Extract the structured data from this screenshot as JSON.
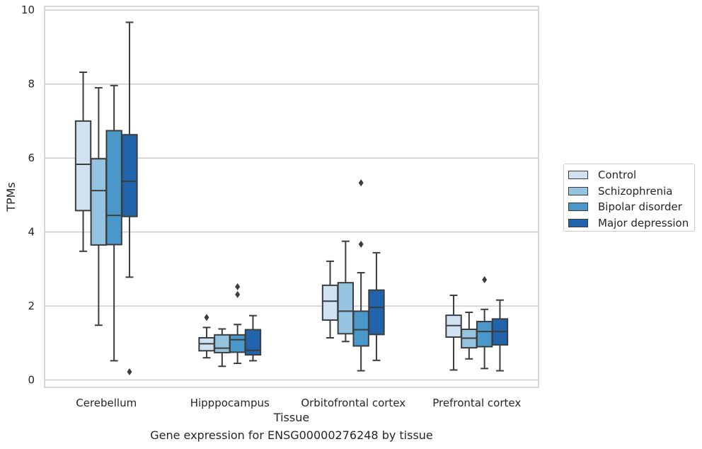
{
  "chart_data": {
    "type": "box",
    "title": "",
    "caption": "Gene expression for ENSG00000276248 by tissue",
    "xlabel": "Tissue",
    "ylabel": "TPMs",
    "ylim": [
      -0.2,
      10.1
    ],
    "yticks": [
      0,
      2,
      4,
      6,
      8,
      10
    ],
    "grid": "horizontal",
    "legend_position": "right",
    "categories": [
      "Cerebellum",
      "Hipppocampus",
      "Orbitofrontal cortex",
      "Prefrontal cortex"
    ],
    "series": [
      {
        "name": "Control",
        "color": "#d0e1f2",
        "boxes": [
          {
            "whislo": 3.48,
            "q1": 4.58,
            "med": 5.83,
            "q3": 7.0,
            "whishi": 8.32,
            "fliers": []
          },
          {
            "whislo": 0.6,
            "q1": 0.79,
            "med": 0.98,
            "q3": 1.14,
            "whishi": 1.42,
            "fliers": [
              1.69
            ]
          },
          {
            "whislo": 1.14,
            "q1": 1.62,
            "med": 2.13,
            "q3": 2.56,
            "whishi": 3.21,
            "fliers": []
          },
          {
            "whislo": 0.27,
            "q1": 1.16,
            "med": 1.47,
            "q3": 1.75,
            "whishi": 2.29,
            "fliers": []
          }
        ]
      },
      {
        "name": "Schizophrenia",
        "color": "#94c4df",
        "boxes": [
          {
            "whislo": 1.48,
            "q1": 3.65,
            "med": 5.12,
            "q3": 5.98,
            "whishi": 7.9,
            "fliers": []
          },
          {
            "whislo": 0.37,
            "q1": 0.74,
            "med": 0.86,
            "q3": 1.22,
            "whishi": 1.38,
            "fliers": []
          },
          {
            "whislo": 1.04,
            "q1": 1.25,
            "med": 1.86,
            "q3": 2.63,
            "whishi": 3.75,
            "fliers": []
          },
          {
            "whislo": 0.57,
            "q1": 0.87,
            "med": 1.13,
            "q3": 1.37,
            "whishi": 1.83,
            "fliers": []
          }
        ]
      },
      {
        "name": "Bipolar disorder",
        "color": "#4a98c9",
        "boxes": [
          {
            "whislo": 0.52,
            "q1": 3.66,
            "med": 4.45,
            "q3": 6.74,
            "whishi": 7.96,
            "fliers": []
          },
          {
            "whislo": 0.45,
            "q1": 0.75,
            "med": 1.09,
            "q3": 1.22,
            "whishi": 1.5,
            "fliers": [
              2.31,
              2.52
            ]
          },
          {
            "whislo": 0.25,
            "q1": 0.92,
            "med": 1.36,
            "q3": 1.86,
            "whishi": 2.9,
            "fliers": [
              3.67,
              5.33
            ]
          },
          {
            "whislo": 0.31,
            "q1": 0.9,
            "med": 1.31,
            "q3": 1.58,
            "whishi": 1.91,
            "fliers": [
              2.71
            ]
          }
        ]
      },
      {
        "name": "Major depression",
        "color": "#2164ab",
        "boxes": [
          {
            "whislo": 2.78,
            "q1": 4.42,
            "med": 5.37,
            "q3": 6.63,
            "whishi": 9.67,
            "fliers": [
              0.22
            ]
          },
          {
            "whislo": 0.52,
            "q1": 0.68,
            "med": 0.8,
            "q3": 1.36,
            "whishi": 1.74,
            "fliers": []
          },
          {
            "whislo": 0.53,
            "q1": 1.23,
            "med": 1.96,
            "q3": 2.43,
            "whishi": 3.44,
            "fliers": []
          },
          {
            "whislo": 0.25,
            "q1": 0.95,
            "med": 1.31,
            "q3": 1.65,
            "whishi": 2.16,
            "fliers": []
          }
        ]
      }
    ]
  }
}
